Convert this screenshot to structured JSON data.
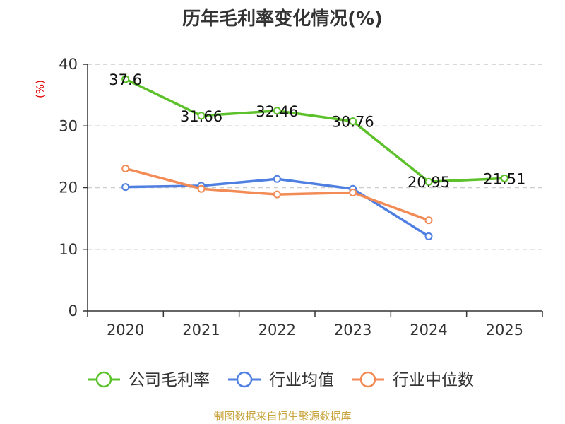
{
  "chart_data": {
    "type": "line",
    "title": "历年毛利率变化情况(%)",
    "ylabel": "(%)",
    "categories": [
      "2020",
      "2021",
      "2022",
      "2023",
      "2024",
      "2025"
    ],
    "ylim": [
      0,
      40
    ],
    "yticks": [
      0,
      10,
      20,
      30,
      40
    ],
    "grid": true,
    "legend_position": "bottom",
    "series": [
      {
        "name": "公司毛利率",
        "color": "#5dc12b",
        "values": [
          37.6,
          31.66,
          32.46,
          30.76,
          20.95,
          21.51
        ],
        "labels": [
          "37.6",
          "31.66",
          "32.46",
          "30.76",
          "20.95",
          "21.51"
        ]
      },
      {
        "name": "行业均值",
        "color": "#4f7fe0",
        "values": [
          20.1,
          20.3,
          21.4,
          19.8,
          12.1,
          null
        ]
      },
      {
        "name": "行业中位数",
        "color": "#f28b55",
        "values": [
          23.1,
          19.8,
          18.9,
          19.2,
          14.7,
          null
        ]
      }
    ]
  },
  "source": "制图数据来自恒生聚源数据库"
}
